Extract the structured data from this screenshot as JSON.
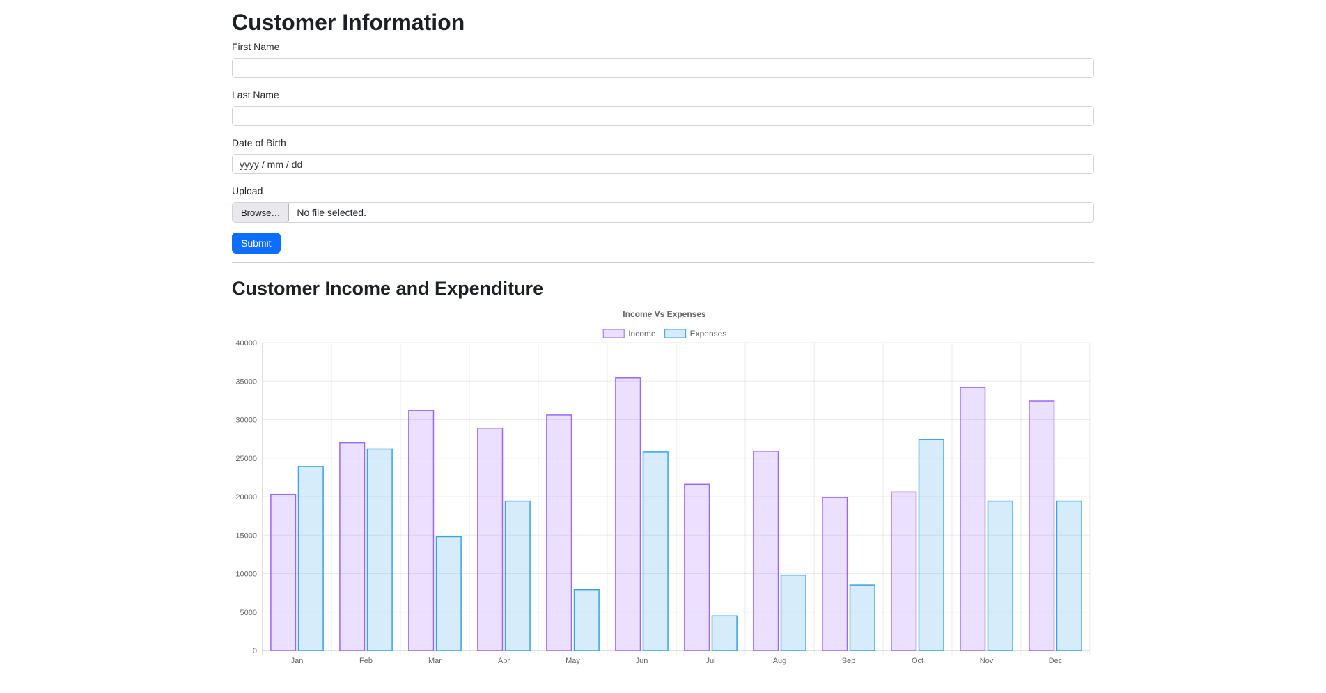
{
  "form": {
    "heading": "Customer Information",
    "first_name": {
      "label": "First Name",
      "value": ""
    },
    "last_name": {
      "label": "Last Name",
      "value": ""
    },
    "dob": {
      "label": "Date of Birth",
      "value": "",
      "placeholder": "yyyy / mm / dd"
    },
    "upload": {
      "label": "Upload",
      "browse_label": "Browse…",
      "status": "No file selected."
    },
    "submit_label": "Submit",
    "accent_color": "#0d6efd"
  },
  "expenditure_section": {
    "heading": "Customer Income and Expenditure"
  },
  "chart_data": {
    "type": "bar",
    "title": "Income Vs Expenses",
    "categories": [
      "Jan",
      "Feb",
      "Mar",
      "Apr",
      "May",
      "Jun",
      "Jul",
      "Aug",
      "Sep",
      "Oct",
      "Nov",
      "Dec"
    ],
    "series": [
      {
        "name": "Income",
        "fill": "rgba(153,102,255,0.2)",
        "border": "#9966FF",
        "values": [
          20300,
          27000,
          31200,
          28900,
          30600,
          35400,
          21600,
          25900,
          19900,
          20600,
          34200,
          32400
        ]
      },
      {
        "name": "Expenses",
        "fill": "rgba(54,162,235,0.2)",
        "border": "#36A2EB",
        "values": [
          23900,
          26200,
          14800,
          19400,
          7900,
          25800,
          4500,
          9800,
          8500,
          27400,
          19400,
          19400
        ]
      }
    ],
    "ylim": [
      0,
      40000
    ],
    "ytick_step": 5000,
    "ytick_labels": [
      "0",
      "5000",
      "10000",
      "15000",
      "20000",
      "25000",
      "30000",
      "35000",
      "40000"
    ],
    "legend_position": "top",
    "grid": true,
    "axis_color": "#666666",
    "grid_color": "rgba(0,0,0,0.08)",
    "axis_line_color": "rgba(0,0,0,0.25)"
  }
}
